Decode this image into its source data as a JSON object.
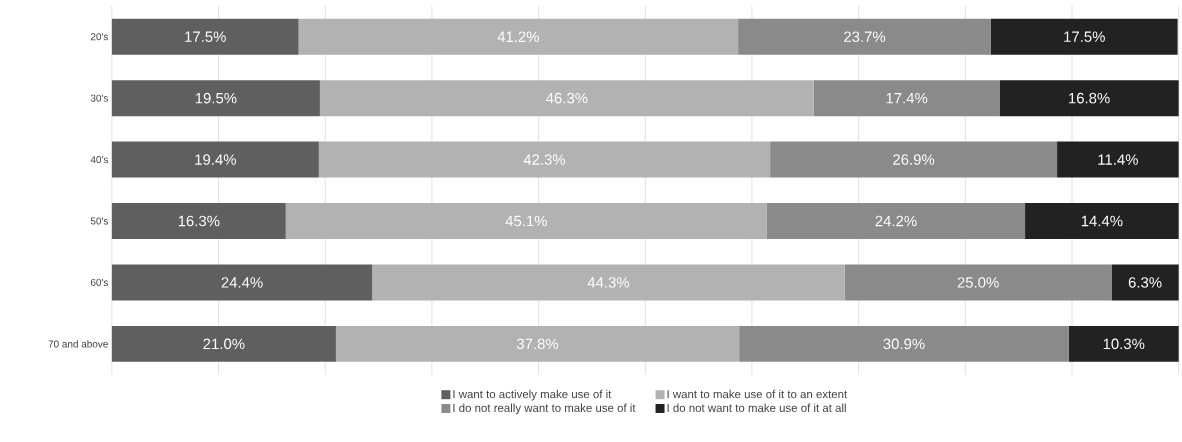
{
  "chart_data": {
    "type": "bar",
    "orientation": "horizontal",
    "stacked": true,
    "categories": [
      "20's",
      "30's",
      "40's",
      "50's",
      "60's",
      "70 and above"
    ],
    "series": [
      {
        "name": "I want to actively make use of it",
        "color": "#5f5f5f",
        "values": [
          17.5,
          19.5,
          19.4,
          16.3,
          24.4,
          21.0
        ],
        "value_labels": [
          "17.5%",
          "19.5%",
          "19.4%",
          "16.3%",
          "24.4%",
          "21.0%"
        ]
      },
      {
        "name": "I want to make use of it to an extent",
        "color": "#b2b2b2",
        "values": [
          41.2,
          46.3,
          42.3,
          45.1,
          44.3,
          37.8
        ],
        "value_labels": [
          "41.2%",
          "46.3%",
          "42.3%",
          "45.1%",
          "44.3%",
          "37.8%"
        ]
      },
      {
        "name": "I do not really want to make use of it",
        "color": "#8a8a8a",
        "values": [
          23.7,
          17.4,
          26.9,
          24.2,
          25.0,
          30.9
        ],
        "value_labels": [
          "23.7%",
          "17.4%",
          "26.9%",
          "24.2%",
          "25.0%",
          "30.9%"
        ]
      },
      {
        "name": "I do not want to make use of it at all",
        "color": "#222222",
        "values": [
          17.5,
          16.8,
          11.4,
          14.4,
          6.3,
          10.3
        ],
        "value_labels": [
          "17.5%",
          "16.8%",
          "11.4%",
          "14.4%",
          "6.3%",
          "10.3%"
        ]
      }
    ],
    "xlim": [
      0,
      100
    ],
    "xticks": [
      {
        "value": 0,
        "label": null
      },
      {
        "value": 10,
        "label": null
      },
      {
        "value": 20,
        "label": null
      },
      {
        "value": 30,
        "label": null
      },
      {
        "value": 40,
        "label": null
      },
      {
        "value": 50,
        "label": null
      },
      {
        "value": 60,
        "label": null
      },
      {
        "value": 70,
        "label": null
      },
      {
        "value": 80,
        "label": null
      },
      {
        "value": 90,
        "label": null
      },
      {
        "value": 100,
        "label": null
      }
    ],
    "tick_labels": "y",
    "grid": "x",
    "legend": "bottom"
  }
}
